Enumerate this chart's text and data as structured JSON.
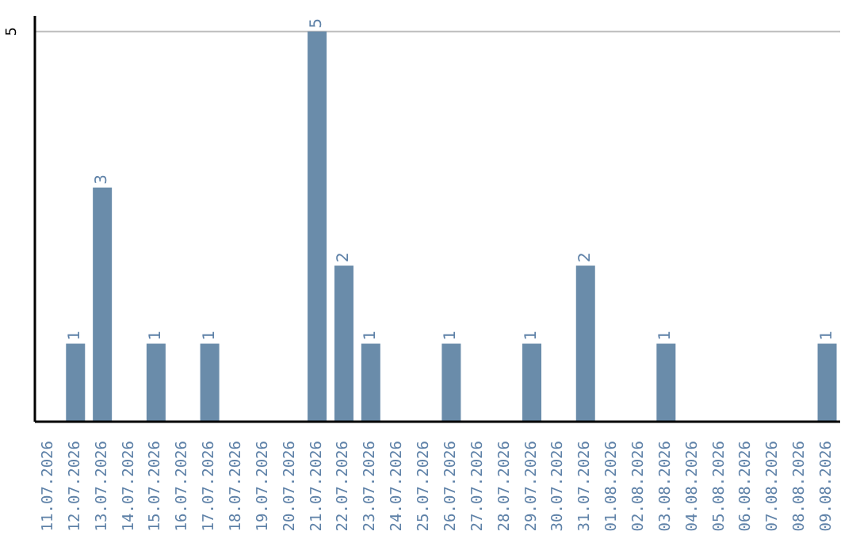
{
  "chart_data": {
    "type": "bar",
    "categories": [
      "11.07.2026",
      "12.07.2026",
      "13.07.2026",
      "14.07.2026",
      "15.07.2026",
      "16.07.2026",
      "17.07.2026",
      "18.07.2026",
      "19.07.2026",
      "20.07.2026",
      "21.07.2026",
      "22.07.2026",
      "23.07.2026",
      "24.07.2026",
      "25.07.2026",
      "26.07.2026",
      "27.07.2026",
      "28.07.2026",
      "29.07.2026",
      "30.07.2026",
      "31.07.2026",
      "01.08.2026",
      "02.08.2026",
      "03.08.2026",
      "04.08.2026",
      "05.08.2026",
      "06.08.2026",
      "07.08.2026",
      "08.08.2026",
      "09.08.2026"
    ],
    "values": [
      0,
      1,
      3,
      0,
      1,
      0,
      1,
      0,
      0,
      0,
      5,
      2,
      1,
      0,
      0,
      1,
      0,
      0,
      1,
      0,
      2,
      0,
      0,
      1,
      0,
      0,
      0,
      0,
      0,
      1
    ],
    "value_labels": [
      null,
      "1",
      "3",
      null,
      "1",
      null,
      "1",
      null,
      null,
      null,
      "5",
      "2",
      "1",
      null,
      null,
      "1",
      null,
      null,
      "1",
      null,
      "2",
      null,
      null,
      "1",
      null,
      null,
      null,
      null,
      null,
      "1"
    ],
    "color": "#6a8caa",
    "ylim": [
      0,
      5.2
    ],
    "yticks": [
      5
    ],
    "grid": "y",
    "legend": false
  }
}
